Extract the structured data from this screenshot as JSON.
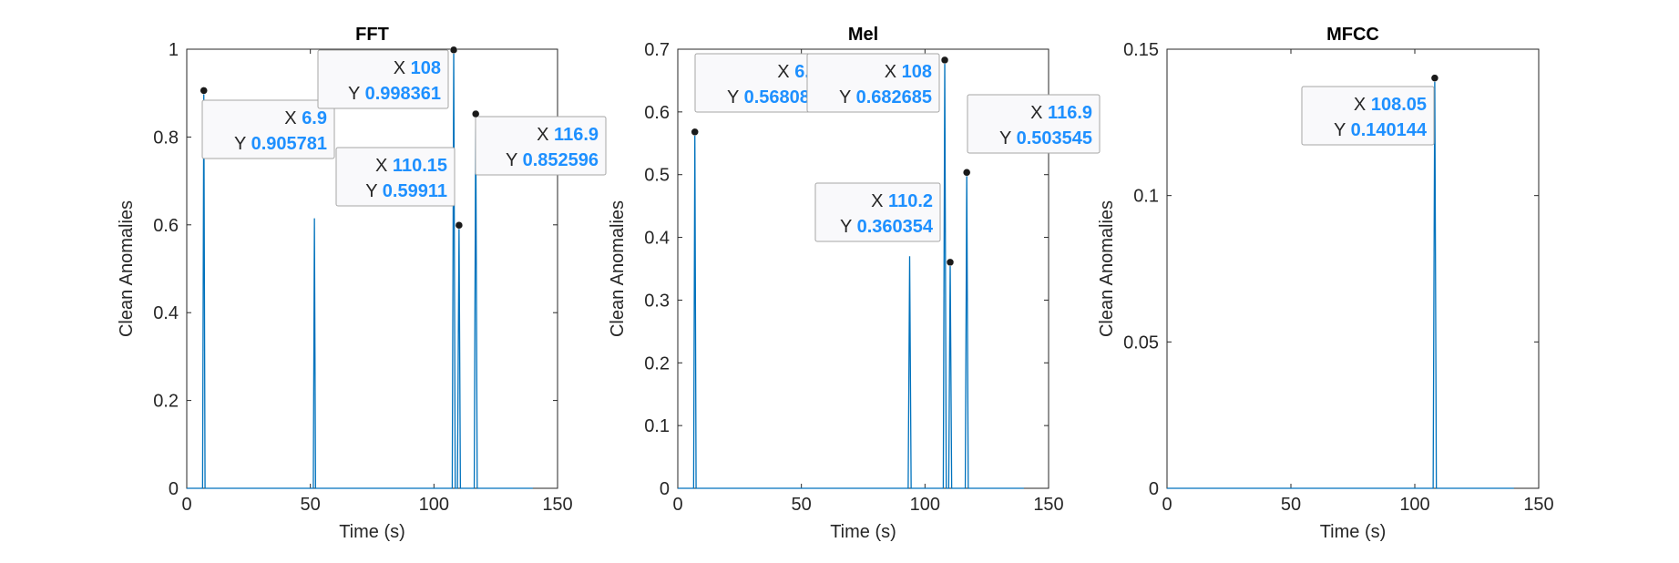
{
  "figure": {
    "background": "#ffffff",
    "line_color": "#0072bd",
    "datatip_value_color": "#1e90ff"
  },
  "chart_data": [
    {
      "type": "line",
      "title": "FFT",
      "xlabel": "Time (s)",
      "ylabel": "Clean Anomalies",
      "xlim": [
        0,
        150
      ],
      "ylim": [
        0,
        1
      ],
      "xticks": [
        0,
        50,
        100,
        150
      ],
      "yticks": [
        0,
        0.2,
        0.4,
        0.6,
        0.8,
        1
      ],
      "ytick_labels": [
        "0",
        "0.2",
        "0.4",
        "0.6",
        "0.8",
        "1"
      ],
      "grid": false,
      "series": [
        {
          "x": [
            0,
            6.4,
            6.9,
            7.4,
            51.2,
            51.65,
            52.1,
            107.4,
            108,
            108.6,
            109.5,
            110.15,
            110.7,
            116.3,
            116.9,
            117.5,
            140
          ],
          "y": [
            0,
            0,
            0.905781,
            0,
            0,
            0.615,
            0,
            0,
            0.998361,
            0,
            0,
            0.59911,
            0,
            0,
            0.852596,
            0,
            0
          ]
        }
      ],
      "datatips": [
        {
          "x": 6.9,
          "y": 0.905781,
          "x_label": "6.9",
          "y_label": "0.905781"
        },
        {
          "x": 108,
          "y": 0.998361,
          "x_label": "108",
          "y_label": "0.998361"
        },
        {
          "x": 110.15,
          "y": 0.59911,
          "x_label": "110.15",
          "y_label": "0.59911"
        },
        {
          "x": 116.9,
          "y": 0.852596,
          "x_label": "116.9",
          "y_label": "0.852596"
        }
      ]
    },
    {
      "type": "line",
      "title": "Mel",
      "xlabel": "Time (s)",
      "ylabel": "Clean Anomalies",
      "xlim": [
        0,
        150
      ],
      "ylim": [
        0,
        0.7
      ],
      "xticks": [
        0,
        50,
        100,
        150
      ],
      "yticks": [
        0,
        0.1,
        0.2,
        0.3,
        0.4,
        0.5,
        0.6,
        0.7
      ],
      "ytick_labels": [
        "0",
        "0.1",
        "0.2",
        "0.3",
        "0.4",
        "0.5",
        "0.6",
        "0.7"
      ],
      "grid": false,
      "series": [
        {
          "x": [
            0,
            6.4,
            6.9,
            7.4,
            93.2,
            93.8,
            94.4,
            107.4,
            108,
            108.6,
            109.6,
            110.2,
            110.8,
            116.3,
            116.9,
            117.5,
            140
          ],
          "y": [
            0,
            0,
            0.568089,
            0,
            0,
            0.37,
            0,
            0,
            0.682685,
            0,
            0,
            0.360354,
            0,
            0,
            0.503545,
            0,
            0
          ]
        }
      ],
      "datatips": [
        {
          "x": 6.9,
          "y": 0.568089,
          "x_label": "6.9",
          "y_label": "0.568089"
        },
        {
          "x": 108,
          "y": 0.682685,
          "x_label": "108",
          "y_label": "0.682685"
        },
        {
          "x": 110.2,
          "y": 0.360354,
          "x_label": "110.2",
          "y_label": "0.360354"
        },
        {
          "x": 116.9,
          "y": 0.503545,
          "x_label": "116.9",
          "y_label": "0.503545"
        }
      ]
    },
    {
      "type": "line",
      "title": "MFCC",
      "xlabel": "Time (s)",
      "ylabel": "Clean Anomalies",
      "xlim": [
        0,
        150
      ],
      "ylim": [
        0,
        0.15
      ],
      "xticks": [
        0,
        50,
        100,
        150
      ],
      "yticks": [
        0,
        0.05,
        0.1,
        0.15
      ],
      "ytick_labels": [
        "0",
        "0.05",
        "0.1",
        "0.15"
      ],
      "grid": false,
      "series": [
        {
          "x": [
            0,
            107.4,
            108.05,
            108.7,
            140
          ],
          "y": [
            0,
            0,
            0.140144,
            0,
            0
          ]
        }
      ],
      "datatips": [
        {
          "x": 108.05,
          "y": 0.140144,
          "x_label": "108.05",
          "y_label": "0.140144"
        }
      ]
    }
  ],
  "datatip_labels": {
    "x_prefix": "X",
    "y_prefix": "Y"
  }
}
